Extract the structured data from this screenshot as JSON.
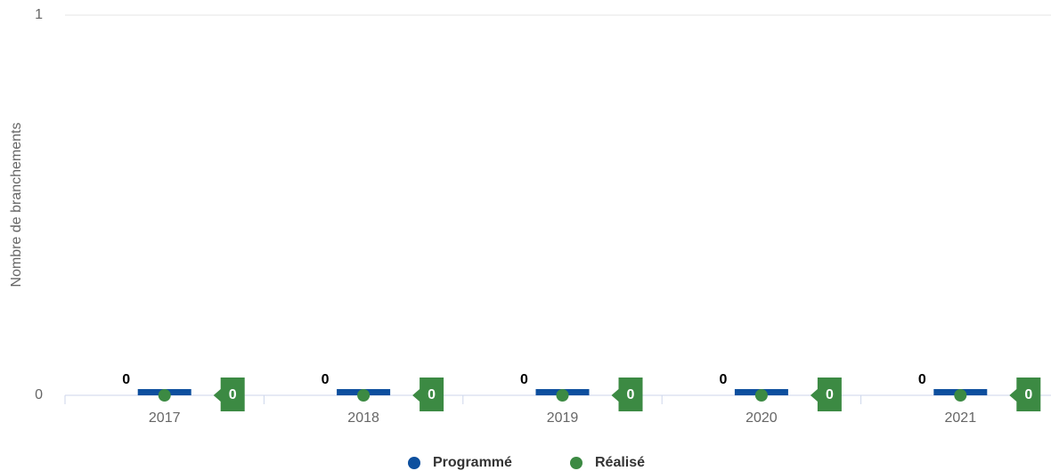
{
  "chart_data": {
    "type": "bar",
    "y_label": "Nombre de branchements",
    "categories": [
      "2017",
      "2018",
      "2019",
      "2020",
      "2021"
    ],
    "series": [
      {
        "name": "Programmé",
        "type": "bar",
        "color": "#0d4f9e",
        "values": [
          0,
          0,
          0,
          0,
          0
        ]
      },
      {
        "name": "Réalisé",
        "type": "scatter",
        "color": "#3c8a43",
        "values": [
          0,
          0,
          0,
          0,
          0
        ]
      }
    ],
    "ylim": [
      0,
      1
    ],
    "yticks": [
      0,
      1
    ],
    "grid": true,
    "legend": "bottom"
  }
}
